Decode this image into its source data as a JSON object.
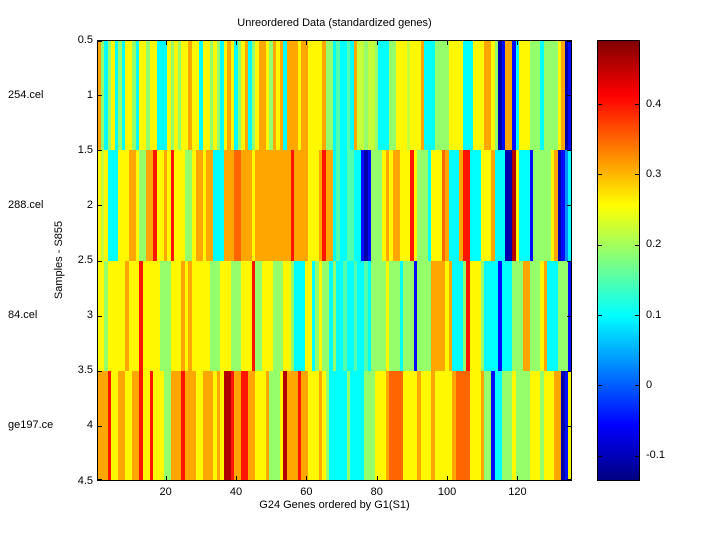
{
  "figure": {
    "title": "Unreordered Data (standardized genes)",
    "xlabel": "G24 Genes ordered by G1(S1)",
    "ylabel": "Samples - S855",
    "background_color": "#ffffff",
    "text_color": "#000000",
    "axis_color": "#000000"
  },
  "chart_data": {
    "type": "heatmap",
    "colormap": "jet",
    "title": "Unreordered Data (standardized genes)",
    "xlabel": "G24 Genes ordered by G1(S1)",
    "ylabel": "Samples - S855",
    "row_labels": [
      "254.cel",
      "288.cel",
      "84.cel",
      "ge197.ce"
    ],
    "n_rows": 4,
    "n_cols": 135,
    "x_range": [
      0.5,
      135.5
    ],
    "y_range": [
      0.5,
      4.5
    ],
    "x_ticks": [
      20,
      40,
      60,
      80,
      100,
      120
    ],
    "y_ticks": [
      0.5,
      1,
      1.5,
      2,
      2.5,
      3,
      3.5,
      4,
      4.5
    ],
    "color_range": [
      -0.136,
      0.491
    ],
    "colorbar_ticks": [
      0.4,
      0.3,
      0.2,
      0.1,
      0,
      -0.1
    ],
    "code_values": {
      "N": -0.11,
      "B": -0.05,
      "A": 0.03,
      "C": 0.1,
      "T": 0.15,
      "G": 0.19,
      "L": 0.22,
      "Y": 0.26,
      "O": 0.31,
      "R": 0.35,
      "E": 0.4,
      "D": 0.46
    },
    "cells": [
      "OGCGYCGCYYGCYYGYYCCCYGYGYYOYYCYYGYGCYOYCGYOCGYOOYGOYOCOOOYOOYYYYOGGCTCCTCOLLGLLGCCCGGYYYLYYYOCCCGGGGYYYYCCCYYYOOYGNBOOBCYYYGGGCGGGGYONB",
      "YLYCCCYYYOOYGGOOEYYOYEYYYGGYOOYOOCCCOOORROOOYOOOOOOOOOOEOOOOYYYOEOOCTCCTTCCBNBGGGYOYOOYYYEYGGGCYYYROCCCOEECCCYYYOCCCNNDYCCCBGGGGGYONBAC",
      "YYGYYYYYOYYYEYYYYYGGGYYYOYOYYYYYGGGYYYGGGYYYEGGYYYGGGYYGCCCYYCGYGGCGCCTCCTCCTCGGGGYGGGCGGGBGGGGOOOOYOCCCGEYYYGCCCCBCCCGGGOOGGGYOCCCGGGB",
      "OOOEYYOOYYOOEYYEYYYGGOOOEOOOYYOOOYOYDDEOOEEOOYYYOGGGYDOOOEOOYYYOYGCCCCCGCCCCGGGYYYORRRRYYYYOYYYOYYYYYORRRRYYYOGGBCCGGGYGGGGYYYGYYYOONBY"
    ]
  }
}
